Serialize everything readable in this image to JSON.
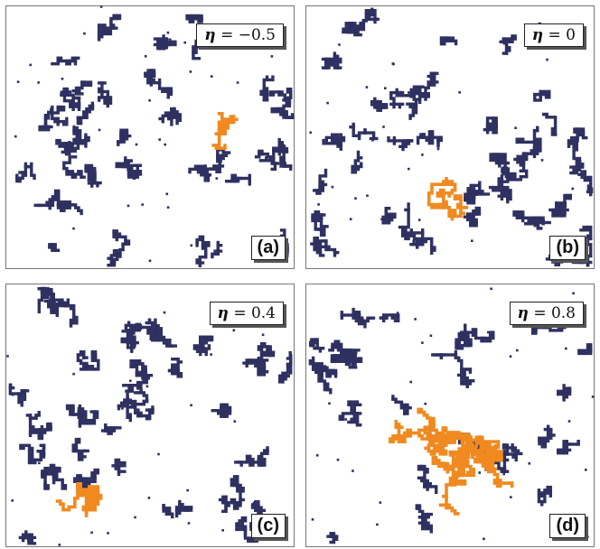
{
  "colors": {
    "cluster": "#2e3160",
    "largest": "#f08a20",
    "frame": "#777777"
  },
  "panels": [
    {
      "tag": "(a)",
      "eta_value": "= −0.5"
    },
    {
      "tag": "(b)",
      "eta_value": "= 0"
    },
    {
      "tag": "(c)",
      "eta_value": "= 0.4"
    },
    {
      "tag": "(d)",
      "eta_value": "= 0.8"
    }
  ],
  "eta_symbol": "η"
}
